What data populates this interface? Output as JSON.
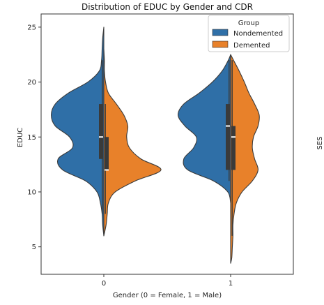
{
  "chart_data": {
    "type": "violin",
    "title": "Distribution of EDUC by Gender and CDR",
    "xlabel": "Gender (0 = Female, 1 = Male)",
    "ylabel": "EDUC",
    "side_label": "SES",
    "categories": [
      "0",
      "1"
    ],
    "ylim": [
      2.5,
      26.2
    ],
    "yticks": [
      5,
      10,
      15,
      20,
      25
    ],
    "legend": {
      "title": "Group",
      "position": "top-right",
      "entries": [
        {
          "name": "Nondemented",
          "color": "#2f6fa7"
        },
        {
          "name": "Demented",
          "color": "#e8812a"
        }
      ]
    },
    "series": [
      {
        "name": "Nondemented",
        "side": "left",
        "color": "#2f6fa7",
        "groups": [
          {
            "category": "0",
            "profile": [
              [
                6,
                0
              ],
              [
                7,
                0.02
              ],
              [
                8,
                0.03
              ],
              [
                9,
                0.06
              ],
              [
                10,
                0.12
              ],
              [
                11,
                0.32
              ],
              [
                12,
                0.72
              ],
              [
                13,
                0.8
              ],
              [
                14,
                0.55
              ],
              [
                15,
                0.6
              ],
              [
                16,
                0.85
              ],
              [
                17,
                0.92
              ],
              [
                18,
                0.85
              ],
              [
                19,
                0.62
              ],
              [
                20,
                0.28
              ],
              [
                21,
                0.08
              ],
              [
                22,
                0.04
              ],
              [
                23,
                0.03
              ],
              [
                24,
                0.02
              ],
              [
                25,
                0
              ]
            ],
            "quartiles": [
              13,
              15,
              18
            ],
            "whiskers": [
              8,
              22
            ]
          },
          {
            "category": "1",
            "profile": [
              [
                9,
                0
              ],
              [
                10,
                0.05
              ],
              [
                11,
                0.3
              ],
              [
                12,
                0.75
              ],
              [
                13,
                0.82
              ],
              [
                14,
                0.65
              ],
              [
                15,
                0.6
              ],
              [
                16,
                0.8
              ],
              [
                17,
                0.92
              ],
              [
                18,
                0.82
              ],
              [
                19,
                0.55
              ],
              [
                20,
                0.32
              ],
              [
                21,
                0.15
              ],
              [
                22,
                0.04
              ],
              [
                22.5,
                0
              ]
            ],
            "quartiles": [
              12,
              16,
              18
            ],
            "whiskers": [
              11,
              22
            ]
          }
        ]
      },
      {
        "name": "Demented",
        "side": "right",
        "color": "#e8812a",
        "groups": [
          {
            "category": "0",
            "profile": [
              [
                6,
                0
              ],
              [
                7,
                0.04
              ],
              [
                8,
                0.06
              ],
              [
                9,
                0.08
              ],
              [
                10,
                0.2
              ],
              [
                11,
                0.55
              ],
              [
                12,
                1.0
              ],
              [
                13,
                0.65
              ],
              [
                14,
                0.45
              ],
              [
                15,
                0.4
              ],
              [
                16,
                0.42
              ],
              [
                17,
                0.35
              ],
              [
                18,
                0.22
              ],
              [
                19,
                0.08
              ],
              [
                20,
                0.03
              ],
              [
                21,
                0.01
              ],
              [
                22,
                0.01
              ],
              [
                23,
                0
              ]
            ],
            "quartiles": [
              12,
              12,
              15
            ],
            "whiskers": [
              8,
              18
            ]
          },
          {
            "category": "1",
            "profile": [
              [
                3.5,
                0
              ],
              [
                4,
                0.02
              ],
              [
                5,
                0.03
              ],
              [
                6,
                0.04
              ],
              [
                7,
                0.04
              ],
              [
                8,
                0.06
              ],
              [
                9,
                0.1
              ],
              [
                10,
                0.2
              ],
              [
                11,
                0.38
              ],
              [
                12,
                0.48
              ],
              [
                13,
                0.42
              ],
              [
                14,
                0.38
              ],
              [
                15,
                0.4
              ],
              [
                16,
                0.48
              ],
              [
                17,
                0.5
              ],
              [
                18,
                0.42
              ],
              [
                19,
                0.32
              ],
              [
                20,
                0.24
              ],
              [
                21,
                0.15
              ],
              [
                22,
                0.05
              ],
              [
                22.5,
                0
              ]
            ],
            "quartiles": [
              12,
              15,
              16
            ],
            "whiskers": [
              6,
              22
            ]
          }
        ]
      }
    ]
  }
}
